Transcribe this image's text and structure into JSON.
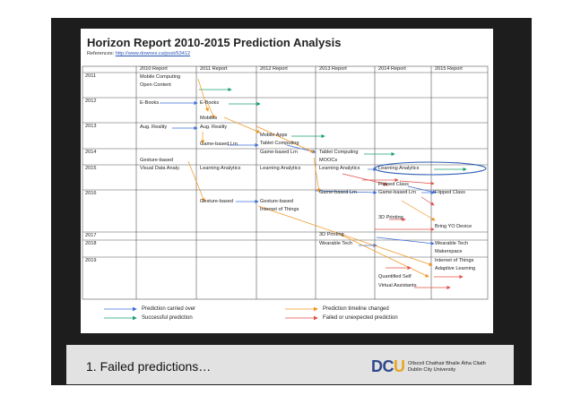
{
  "title": "Horizon Report 2010-2015 Prediction Analysis",
  "references_prefix": "References:",
  "references_url": "http://www.downes.ca/post/63412",
  "columns": [
    "2010 Report",
    "2011 Report",
    "2012 Report",
    "2013 Report",
    "2014 Report",
    "2015 Report"
  ],
  "rows": [
    "2011",
    "2012",
    "2013",
    "2014",
    "2015",
    "2016",
    "2017",
    "2018",
    "2019"
  ],
  "entries": {
    "mobile_computing": "Mobile Computing",
    "open_content": "Open Content",
    "ebooks_2010": "E-Books",
    "ebooks_2011": "E-Books",
    "mobiles_2011": "Mobiles",
    "aug_reality_2010": "Aug. Reality",
    "aug_reality_2011": "Aug. Reality",
    "game_based_2011": "Game-based Lrn",
    "mobile_apps_2012": "Mobile Apps",
    "tablet_computing_2012": "Tablet Computing",
    "game_based_2012": "Game-based Lrn",
    "tablet_computing_2013": "Tablet Computing",
    "moocs_2013": "MOOCs",
    "gesture_based_2010": "Gesture-based",
    "visual_data_2010": "Visual Data Analy.",
    "learning_analytics_2011": "Learning Analytics",
    "learning_analytics_2012": "Learning Analytics",
    "learning_analytics_2013": "Learning Analytics",
    "learning_analytics_2014": "Learning Analytics",
    "flipped_class_2014": "Flipped Class",
    "flipped_class_2015": "Flipped Class",
    "gesture_based_2011": "Gesture-based",
    "gesture_based_2012": "Gesture-based",
    "internet_of_things_2012": "Internet of Things",
    "game_based_2013": "Game-based Lrn",
    "game_based_2014": "Game-based Lrn",
    "printing_2014": "3D Printing",
    "byod_2015": "Bring YO Device",
    "printing_2013": "3D Printing",
    "wearable_tech_2013": "Wearable Tech",
    "wearable_tech_2015": "Wearable Tech",
    "makerspace_2015": "Makerspace",
    "internet_of_things_2015": "Internet of Things",
    "adaptive_learning_2015": "Adaptive Learning",
    "quantified_self_2014": "Quantified Self",
    "virtual_assistants_2014": "Virtual Assistants"
  },
  "legend": {
    "carried_over": "Prediction carried over",
    "successful": "Successful prediction",
    "timeline_changed": "Prediction timeline changed",
    "failed": "Failed or unexpected prediction"
  },
  "colors": {
    "carried_over": "#3b6fd6",
    "successful": "#1aa26b",
    "timeline_changed": "#f0941d",
    "failed": "#e0504a",
    "highlight": "#2f5fb3"
  },
  "caption": "1. Failed predictions…",
  "logo": {
    "d": "DC",
    "u": "U",
    "line1": "Ollscoil Chathair Bhaile Átha Cliath",
    "line2": "Dublin City University"
  }
}
